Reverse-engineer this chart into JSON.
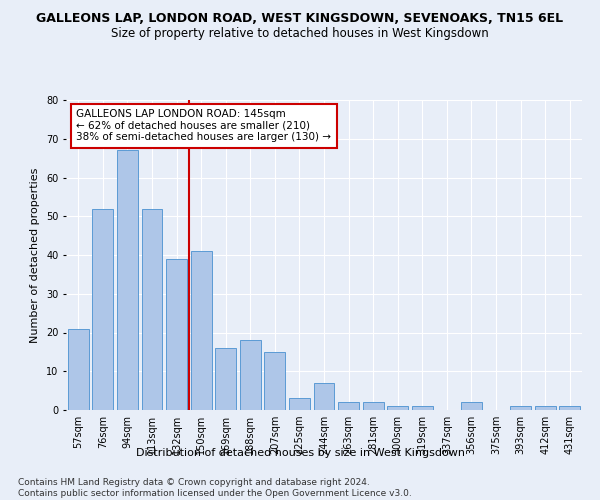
{
  "title": "GALLEONS LAP, LONDON ROAD, WEST KINGSDOWN, SEVENOAKS, TN15 6EL",
  "subtitle": "Size of property relative to detached houses in West Kingsdown",
  "xlabel": "Distribution of detached houses by size in West Kingsdown",
  "ylabel": "Number of detached properties",
  "categories": [
    "57sqm",
    "76sqm",
    "94sqm",
    "113sqm",
    "132sqm",
    "150sqm",
    "169sqm",
    "188sqm",
    "207sqm",
    "225sqm",
    "244sqm",
    "263sqm",
    "281sqm",
    "300sqm",
    "319sqm",
    "337sqm",
    "356sqm",
    "375sqm",
    "393sqm",
    "412sqm",
    "431sqm"
  ],
  "values": [
    21,
    52,
    67,
    52,
    39,
    41,
    16,
    18,
    15,
    3,
    7,
    2,
    2,
    1,
    1,
    0,
    2,
    0,
    1,
    1,
    1
  ],
  "bar_color": "#aec6e8",
  "bar_edge_color": "#5b9bd5",
  "vline_x": 4.5,
  "vline_color": "#cc0000",
  "annotation_text": "GALLEONS LAP LONDON ROAD: 145sqm\n← 62% of detached houses are smaller (210)\n38% of semi-detached houses are larger (130) →",
  "annotation_box_color": "#ffffff",
  "annotation_box_edge": "#cc0000",
  "ylim": [
    0,
    80
  ],
  "yticks": [
    0,
    10,
    20,
    30,
    40,
    50,
    60,
    70,
    80
  ],
  "footer": "Contains HM Land Registry data © Crown copyright and database right 2024.\nContains public sector information licensed under the Open Government Licence v3.0.",
  "background_color": "#e8eef8",
  "plot_bg_color": "#e8eef8",
  "grid_color": "#ffffff",
  "title_fontsize": 9,
  "subtitle_fontsize": 8.5,
  "xlabel_fontsize": 8,
  "ylabel_fontsize": 8,
  "tick_fontsize": 7,
  "annotation_fontsize": 7.5,
  "footer_fontsize": 6.5
}
